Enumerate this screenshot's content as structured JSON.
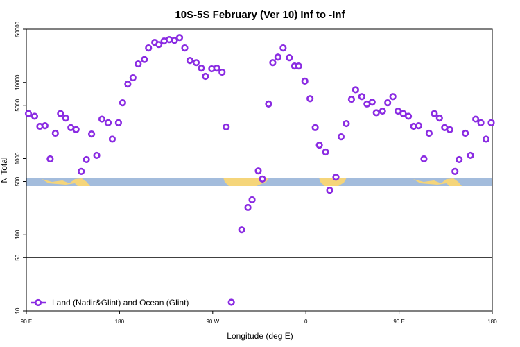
{
  "chart_data": {
    "type": "scatter",
    "title": "10S-5S February (Ver 10)   Inf to -Inf",
    "x_label": "Longitude (deg E)",
    "y_label": "N Total",
    "log_y": true,
    "color": "#8a2be2",
    "legend_position": "bottom-left",
    "reference_line": 50,
    "xlim": [
      90,
      540
    ],
    "ylim": [
      10,
      50000
    ],
    "xticks": [
      {
        "value": 90,
        "label": "90 E"
      },
      180,
      {
        "value": 270,
        "label": "90 W"
      },
      {
        "value": 360,
        "label": "0"
      },
      {
        "value": 450,
        "label": "90 E"
      },
      {
        "value": 540,
        "label": "180"
      }
    ],
    "yticks": [
      10,
      50,
      100,
      500,
      1000,
      5000,
      10000,
      50000
    ],
    "series": [
      {
        "name": "Land (Nadir&Glint) and Ocean (Glint)",
        "color": "#8a2be2",
        "x": [
          92,
          98,
          103,
          108,
          113,
          118,
          123,
          128,
          133,
          138,
          143,
          148,
          153,
          158,
          163,
          169,
          173,
          179,
          183,
          188,
          193,
          198,
          204,
          208,
          214,
          218,
          223,
          228,
          233,
          238,
          243,
          248,
          254,
          259,
          263,
          269,
          274,
          279,
          283,
          288,
          298,
          304,
          308,
          314,
          318,
          324,
          328,
          333,
          338,
          344,
          349,
          353,
          359,
          364,
          369,
          373,
          379,
          383,
          389,
          394,
          399,
          404,
          408,
          414,
          419,
          424,
          428,
          434,
          439,
          444,
          449,
          454,
          459,
          464,
          469,
          474,
          479,
          484,
          489,
          494,
          499,
          504,
          508,
          514,
          519,
          524,
          529,
          534,
          539
        ],
        "values": [
          3900,
          3600,
          2650,
          2700,
          990,
          2150,
          3900,
          3400,
          2550,
          2400,
          680,
          970,
          2100,
          1100,
          3300,
          2950,
          1800,
          2950,
          5400,
          9500,
          11500,
          17500,
          20000,
          28300,
          33500,
          31400,
          34900,
          36400,
          35600,
          38700,
          28300,
          19400,
          18200,
          15400,
          12000,
          15100,
          15400,
          13600,
          2600,
          13,
          116,
          228,
          287,
          690,
          540,
          5200,
          18200,
          21500,
          28300,
          21100,
          16400,
          16400,
          10400,
          6100,
          2550,
          1500,
          1220,
          384,
          570,
          1930,
          2880,
          6000,
          8000,
          6500,
          5200,
          5500,
          4000,
          4200,
          5400,
          6500,
          4200,
          3900,
          3600,
          2650,
          2700,
          990,
          2150,
          3900,
          3400,
          2550,
          2400,
          680,
          970,
          2150,
          1100,
          3300,
          2950,
          1800,
          2950
        ]
      }
    ]
  }
}
